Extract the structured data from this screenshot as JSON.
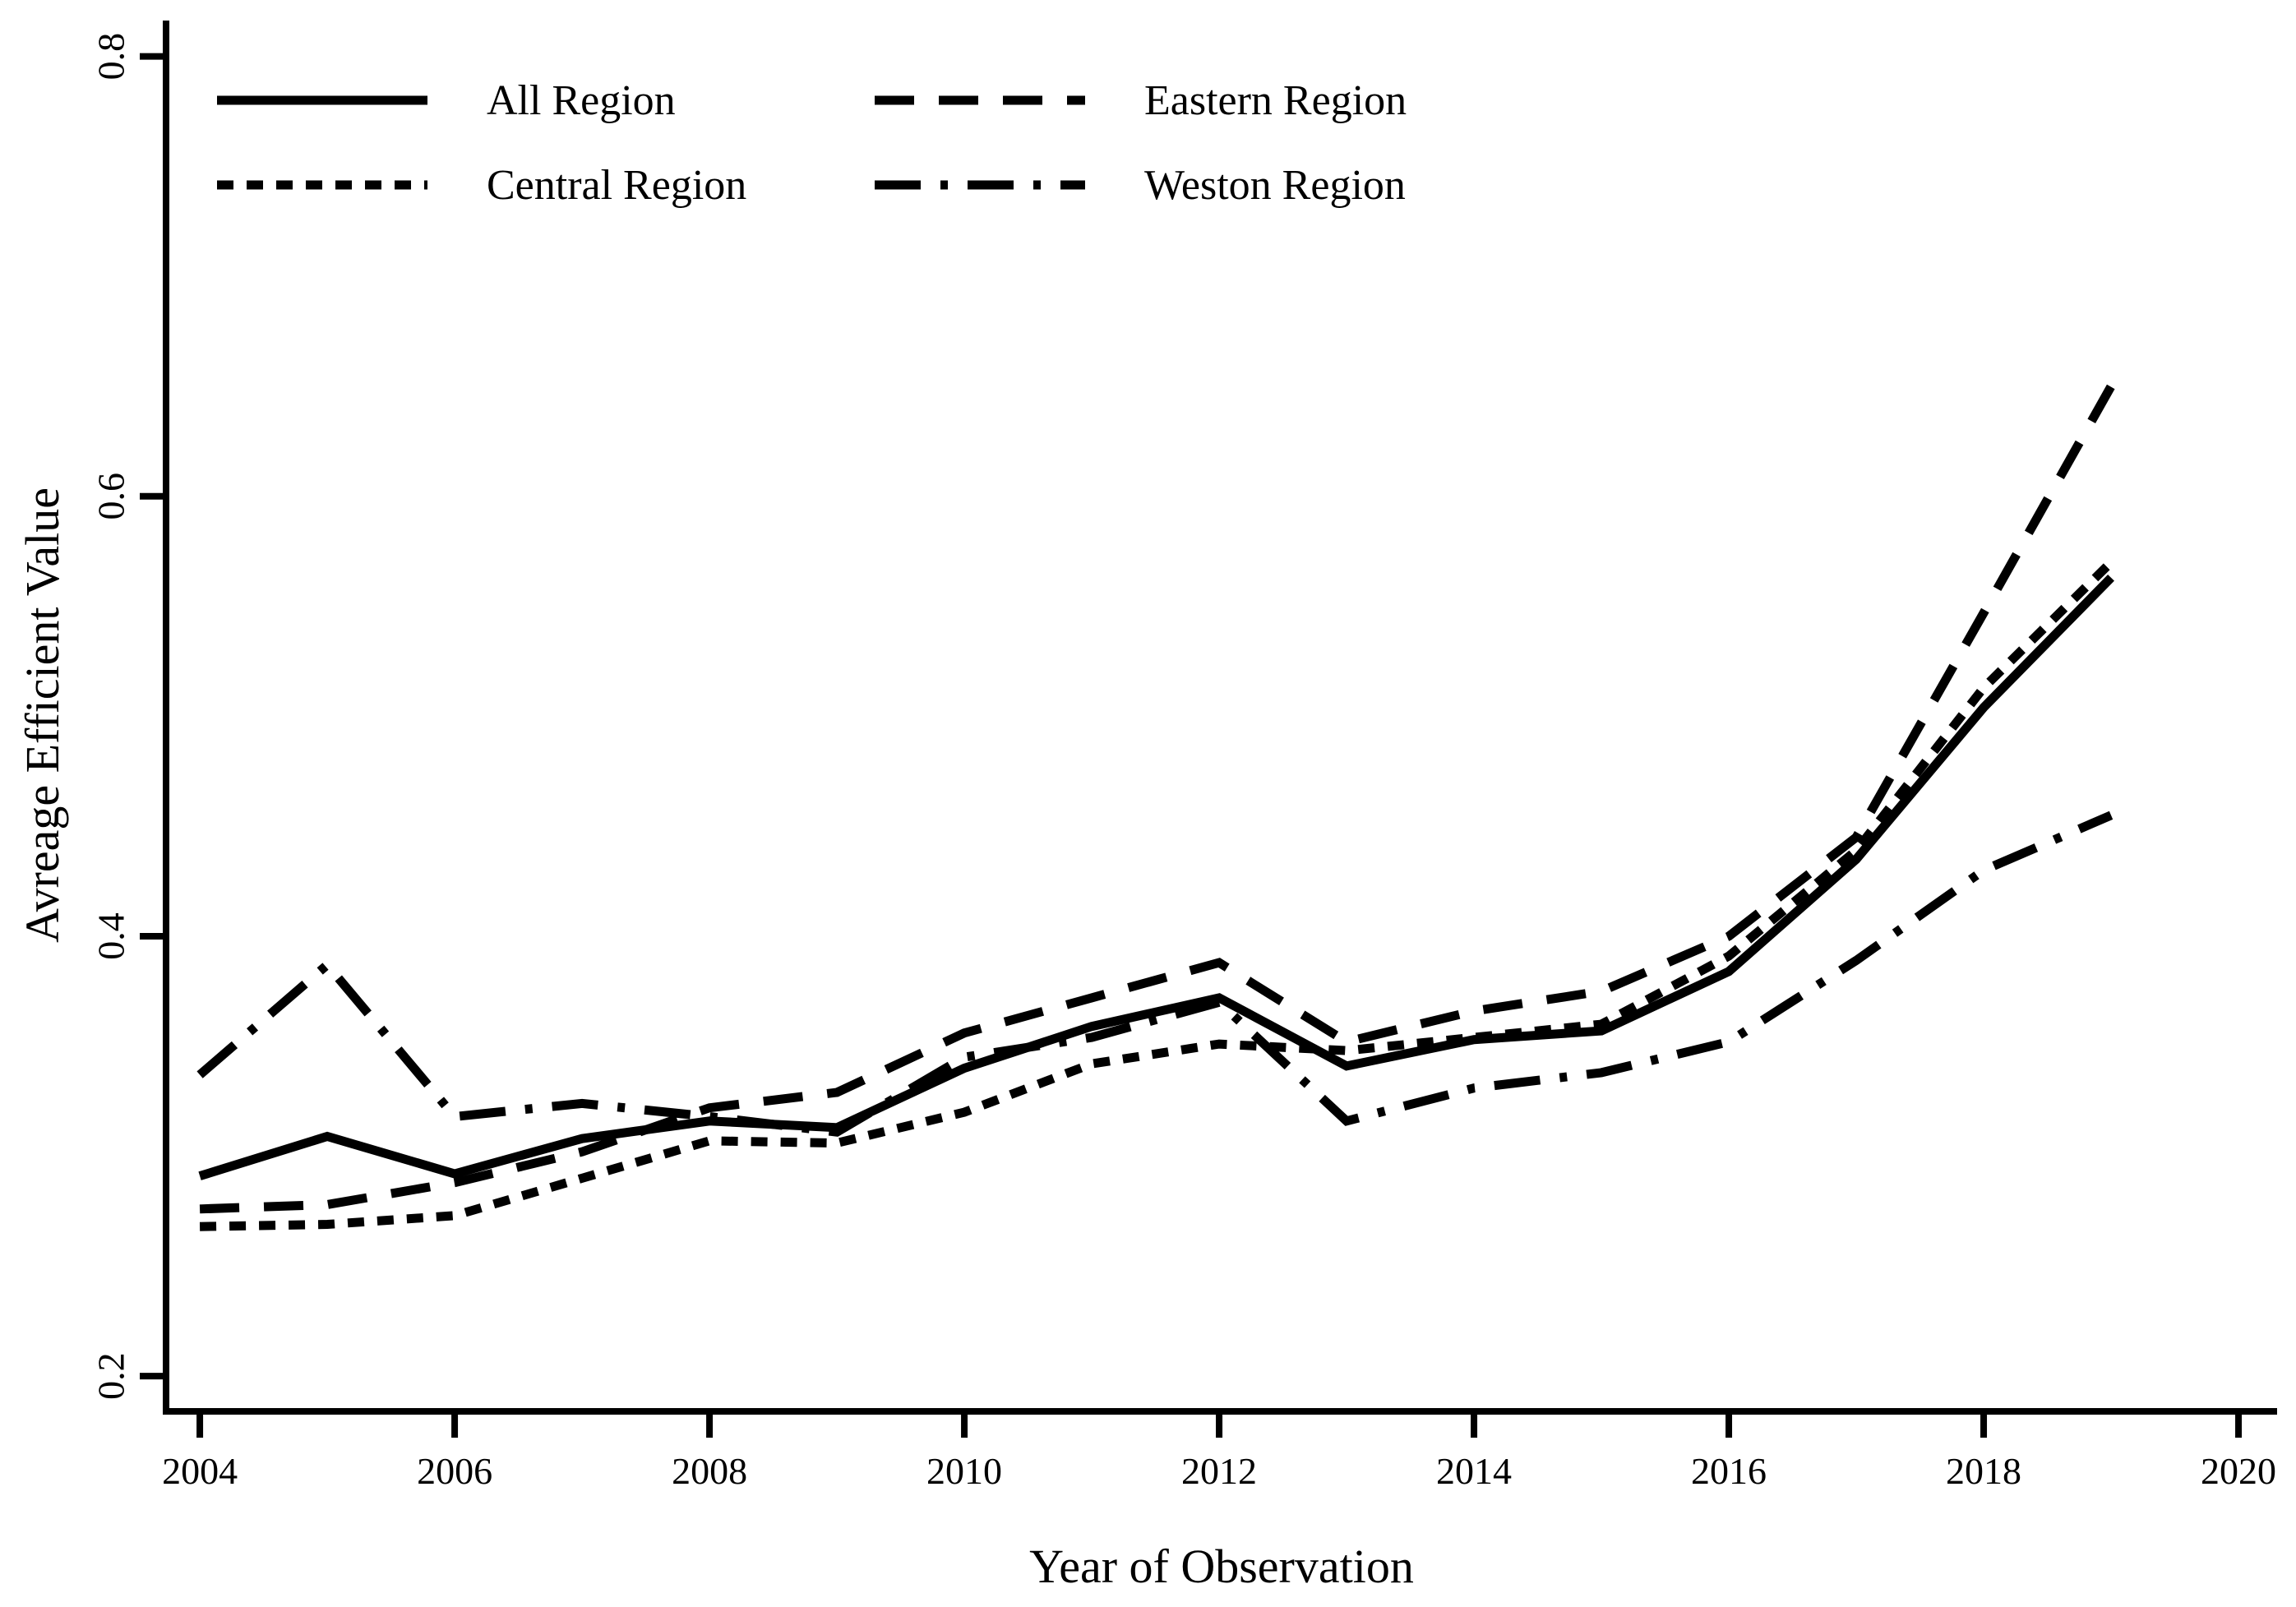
{
  "page": {
    "background": "#ffffff",
    "text_color": "#000000"
  },
  "chart_data": {
    "type": "line",
    "title": "",
    "xlabel": "Year of Observation",
    "ylabel": "Avreage Efficient Value",
    "grid": "off",
    "legend_position": "top-left-inside, 2 columns",
    "line_color": "#000000",
    "x": [
      2004,
      2005,
      2006,
      2007,
      2008,
      2009,
      2010,
      2011,
      2012,
      2013,
      2014,
      2015,
      2016,
      2017,
      2018,
      2019
    ],
    "x_ticks": [
      2004,
      2006,
      2008,
      2010,
      2012,
      2014,
      2016,
      2018,
      2020
    ],
    "y_ticks": [
      0.2,
      0.4,
      0.6,
      0.8
    ],
    "xlim": [
      2003.735,
      2020.303
    ],
    "ylim": [
      0.184,
      0.8163
    ],
    "series": [
      {
        "id": "all-region",
        "name": "All Region",
        "line_style": "solid",
        "dasharray": "none",
        "values": [
          0.291,
          0.309,
          0.292,
          0.308,
          0.316,
          0.313,
          0.34,
          0.359,
          0.372,
          0.341,
          0.353,
          0.357,
          0.384,
          0.435,
          0.504,
          0.563
        ]
      },
      {
        "id": "central-region",
        "name": "Central Region",
        "line_style": "dotted",
        "dasharray": "20 16",
        "values": [
          0.268,
          0.269,
          0.273,
          0.29,
          0.307,
          0.306,
          0.32,
          0.342,
          0.351,
          0.348,
          0.354,
          0.36,
          0.391,
          0.439,
          0.513,
          0.57
        ]
      },
      {
        "id": "eastern-region",
        "name": "Eastern Region",
        "line_style": "dashed",
        "dasharray": "48 30",
        "values": [
          0.276,
          0.278,
          0.288,
          0.302,
          0.322,
          0.329,
          0.356,
          0.372,
          0.388,
          0.352,
          0.366,
          0.375,
          0.4,
          0.445,
          0.547,
          0.65
        ]
      },
      {
        "id": "weston-region",
        "name": "Weston Region",
        "line_style": "dash-dot",
        "dasharray": "56 24 9 24",
        "values": [
          0.337,
          0.387,
          0.318,
          0.324,
          0.318,
          0.311,
          0.345,
          0.354,
          0.37,
          0.316,
          0.331,
          0.338,
          0.352,
          0.389,
          0.43,
          0.455
        ]
      }
    ]
  }
}
